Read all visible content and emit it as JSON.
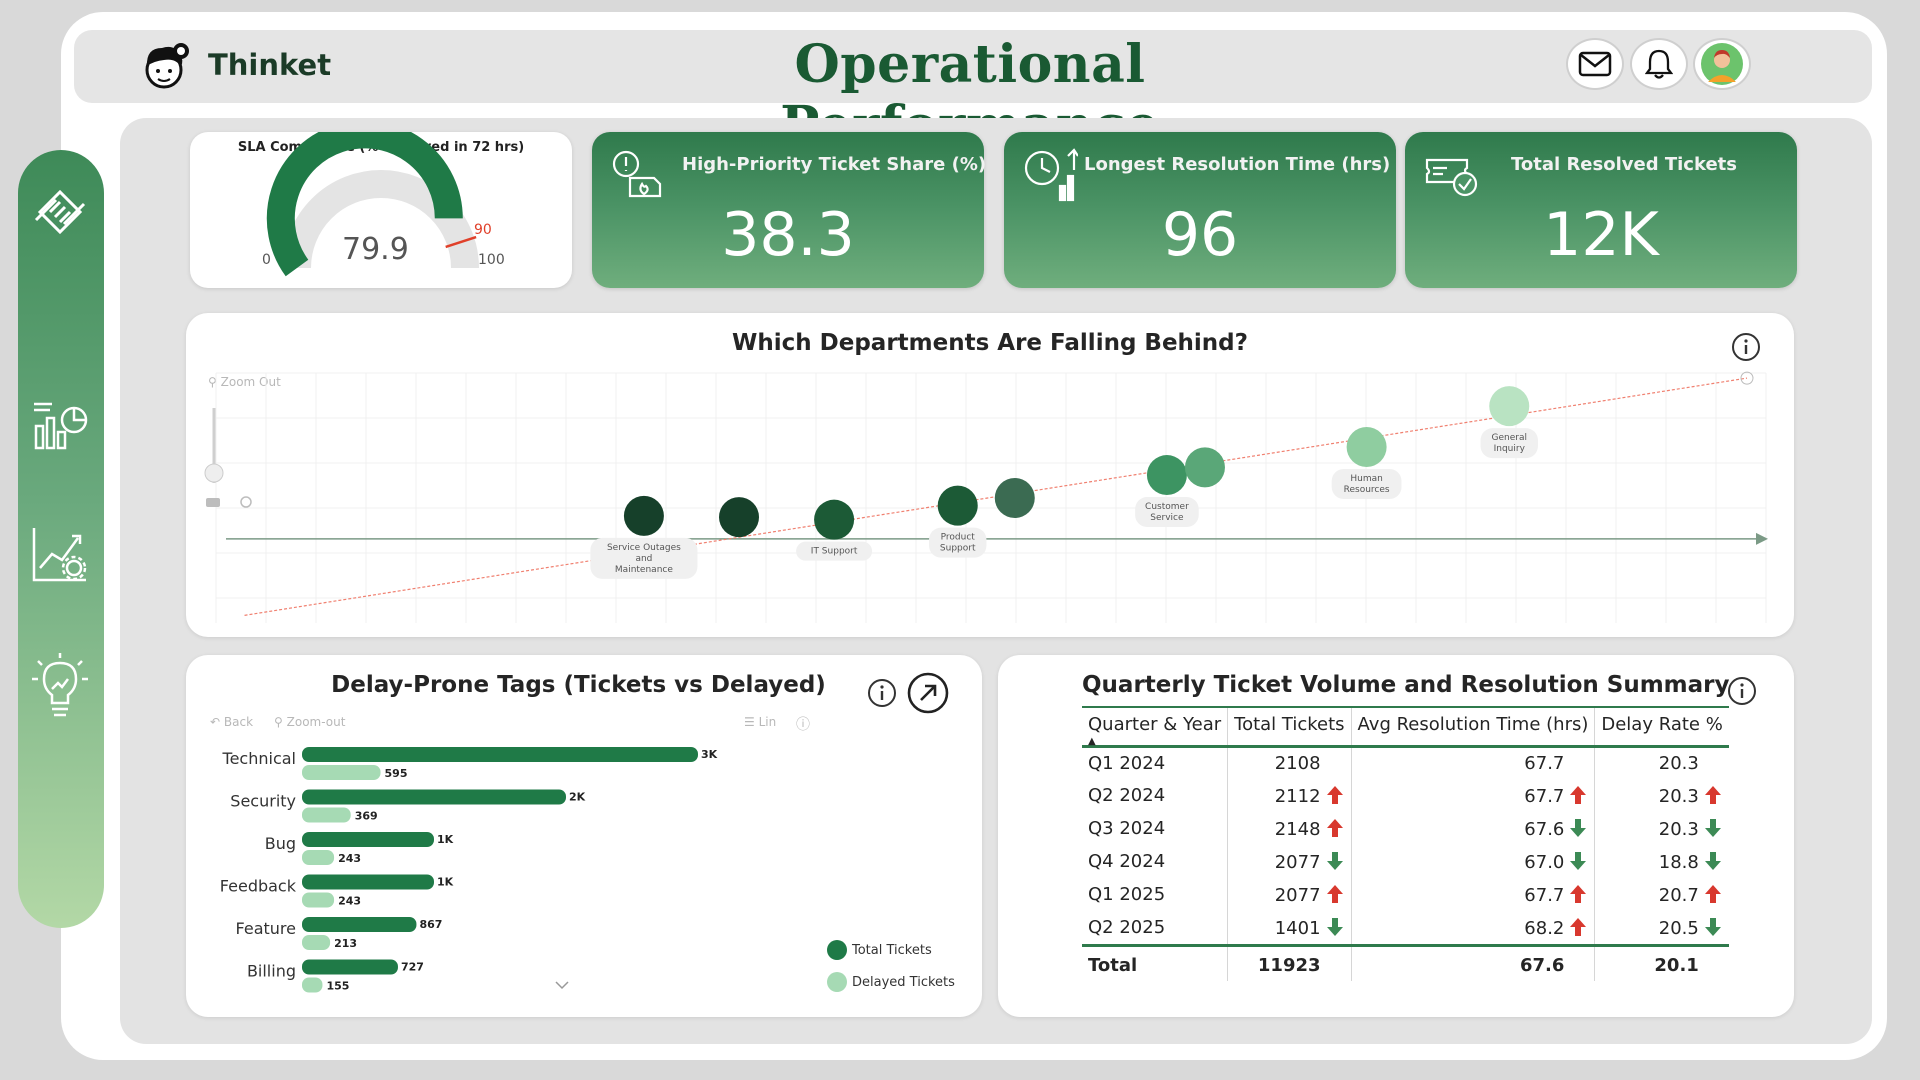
{
  "header": {
    "brand": "Thinket",
    "title": "Operational Performance",
    "icons": [
      "mail-icon",
      "bell-icon",
      "avatar"
    ]
  },
  "sidebar": {
    "items": [
      "tickets-icon",
      "charts-icon",
      "analytics-settings-icon",
      "insights-bulb-icon"
    ]
  },
  "gauge": {
    "title": "SLA Compliance (% Resolved in 72 hrs)",
    "value": 79.9,
    "value_label": "79.9",
    "min_label": "0",
    "max_label": "100",
    "target_label": "90",
    "min": 0,
    "max": 100,
    "target": 90
  },
  "kpis": [
    {
      "label": "High-Priority Ticket Share (%)",
      "value": "38.3",
      "icon": "priority-alert-icon"
    },
    {
      "label": "Longest Resolution Time (hrs)",
      "value": "96",
      "icon": "clock-chart-icon"
    },
    {
      "label": "Total Resolved Tickets",
      "value": "12K",
      "icon": "resolved-ticket-icon"
    }
  ],
  "scatter_card": {
    "title": "Which Departments Are Falling Behind?",
    "zoom_out": "Zoom Out"
  },
  "bar_card": {
    "title": "Delay-Prone Tags (Tickets vs Delayed)",
    "back": "Back",
    "zoom_out": "Zoom-out",
    "lin": "Lin"
  },
  "table_card": {
    "title": "Quarterly Ticket Volume and Resolution Summary",
    "columns": [
      "Quarter & Year",
      "Total Tickets",
      "Avg Resolution Time (hrs)",
      "Delay Rate %"
    ],
    "rows": [
      {
        "q": "Q1 2024",
        "t": "2108",
        "ta": "",
        "r": "67.7",
        "ra": "",
        "d": "20.3",
        "da": ""
      },
      {
        "q": "Q2 2024",
        "t": "2112",
        "ta": "up",
        "r": "67.7",
        "ra": "up",
        "d": "20.3",
        "da": "up"
      },
      {
        "q": "Q3 2024",
        "t": "2148",
        "ta": "up",
        "r": "67.6",
        "ra": "down",
        "d": "20.3",
        "da": "down"
      },
      {
        "q": "Q4 2024",
        "t": "2077",
        "ta": "down",
        "r": "67.0",
        "ra": "down",
        "d": "18.8",
        "da": "down"
      },
      {
        "q": "Q1 2025",
        "t": "2077",
        "ta": "up",
        "r": "67.7",
        "ra": "up",
        "d": "20.7",
        "da": "up"
      },
      {
        "q": "Q2 2025",
        "t": "1401",
        "ta": "down",
        "r": "68.2",
        "ra": "up",
        "d": "20.5",
        "da": "down"
      }
    ],
    "total": {
      "q": "Total",
      "t": "11923",
      "r": "67.6",
      "d": "20.1"
    }
  },
  "colors": {
    "dark_green": "#1f7a47",
    "light_green": "#a6dab4",
    "up_arrow": "#d8382e",
    "down_arrow": "#3c8a55"
  },
  "chart_data": [
    {
      "type": "scatter",
      "title": "Which Departments Are Falling Behind?",
      "points": [
        {
          "label": "Service Outages and Maintenance",
          "x": 1,
          "y": 0.9,
          "shade": "#16402a"
        },
        {
          "label": "",
          "x": 2,
          "y": 0.85,
          "shade": "#16402a"
        },
        {
          "label": "IT Support",
          "x": 3,
          "y": 0.75,
          "shade": "#1c5a36"
        },
        {
          "label": "Product Support",
          "x": 4.3,
          "y": 1.3,
          "shade": "#1c5a36"
        },
        {
          "label": "",
          "x": 4.9,
          "y": 1.6,
          "shade": "#3b6b52"
        },
        {
          "label": "Customer Service",
          "x": 6.5,
          "y": 2.5,
          "shade": "#3d9462"
        },
        {
          "label": "",
          "x": 6.9,
          "y": 2.8,
          "shade": "#5aa778"
        },
        {
          "label": "Human Resources",
          "x": 8.6,
          "y": 3.6,
          "shade": "#8fcda0"
        },
        {
          "label": "General Inquiry",
          "x": 10.1,
          "y": 5.2,
          "shade": "#b9e3c2"
        }
      ],
      "trendline": true,
      "grid": true
    },
    {
      "type": "bar",
      "title": "Delay-Prone Tags (Tickets vs Delayed)",
      "categories": [
        "Technical",
        "Security",
        "Bug",
        "Feedback",
        "Feature",
        "Billing"
      ],
      "series": [
        {
          "name": "Total Tickets",
          "values": [
            3000,
            2000,
            1000,
            1000,
            867,
            727
          ],
          "labels": [
            "3K",
            "2K",
            "1K",
            "1K",
            "867",
            "727"
          ]
        },
        {
          "name": "Delayed Tickets",
          "values": [
            595,
            369,
            243,
            243,
            213,
            155
          ],
          "labels": [
            "595",
            "369",
            "243",
            "243",
            "213",
            "155"
          ]
        }
      ],
      "legend": "bottom-right"
    }
  ]
}
